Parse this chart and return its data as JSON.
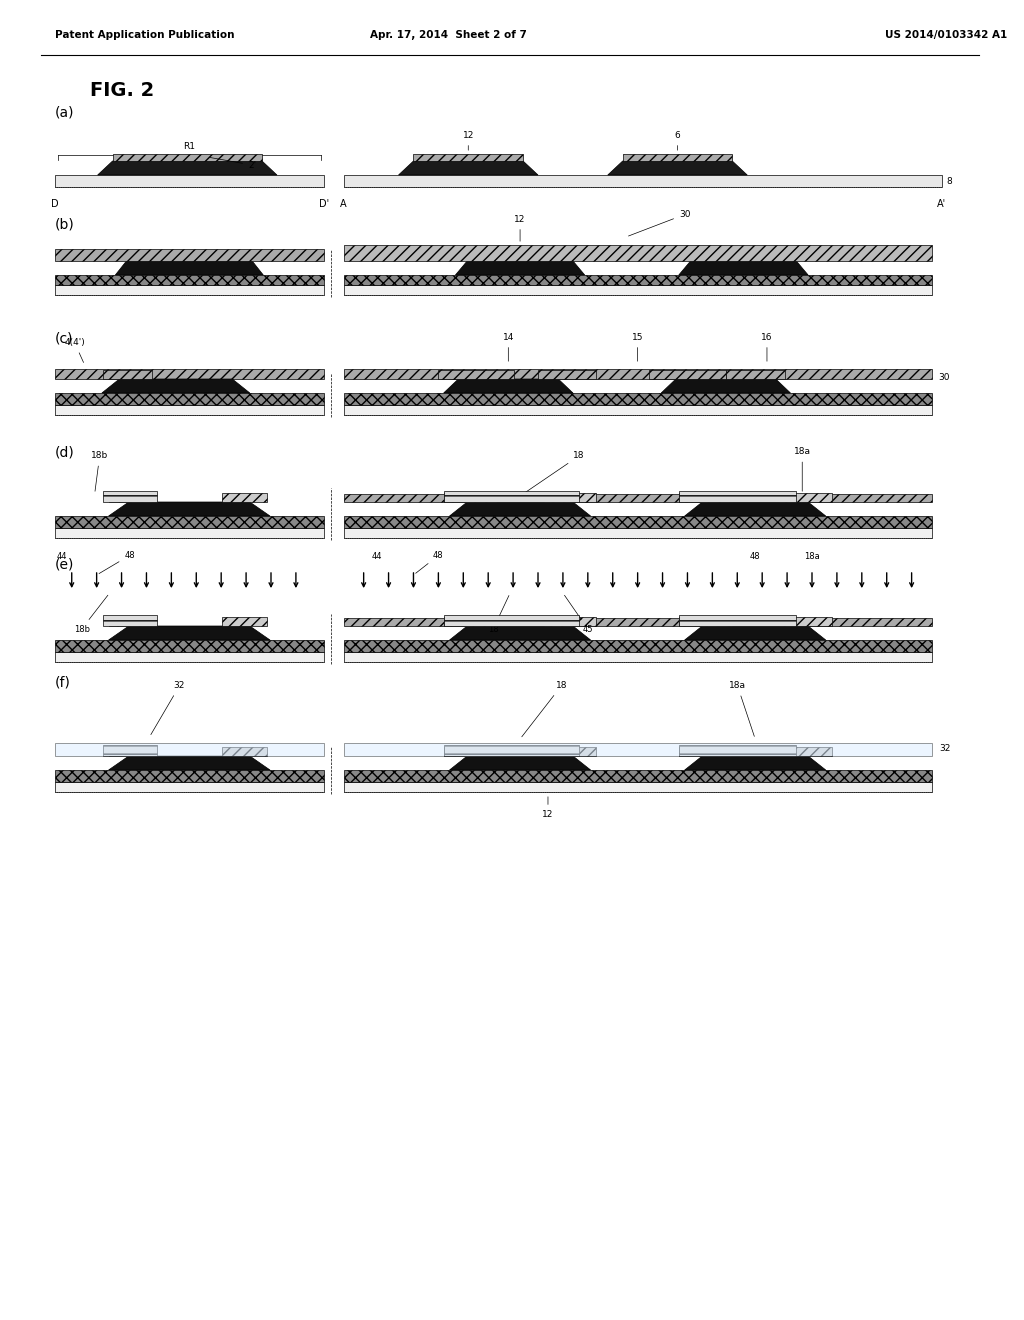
{
  "title": "FIG. 2",
  "header_left": "Patent Application Publication",
  "header_center": "Apr. 17, 2014  Sheet 2 of 7",
  "header_right": "US 2014/0103342 A1",
  "panels": [
    "(a)",
    "(b)",
    "(c)",
    "(d)",
    "(e)",
    "(f)"
  ],
  "background_color": "#ffffff"
}
